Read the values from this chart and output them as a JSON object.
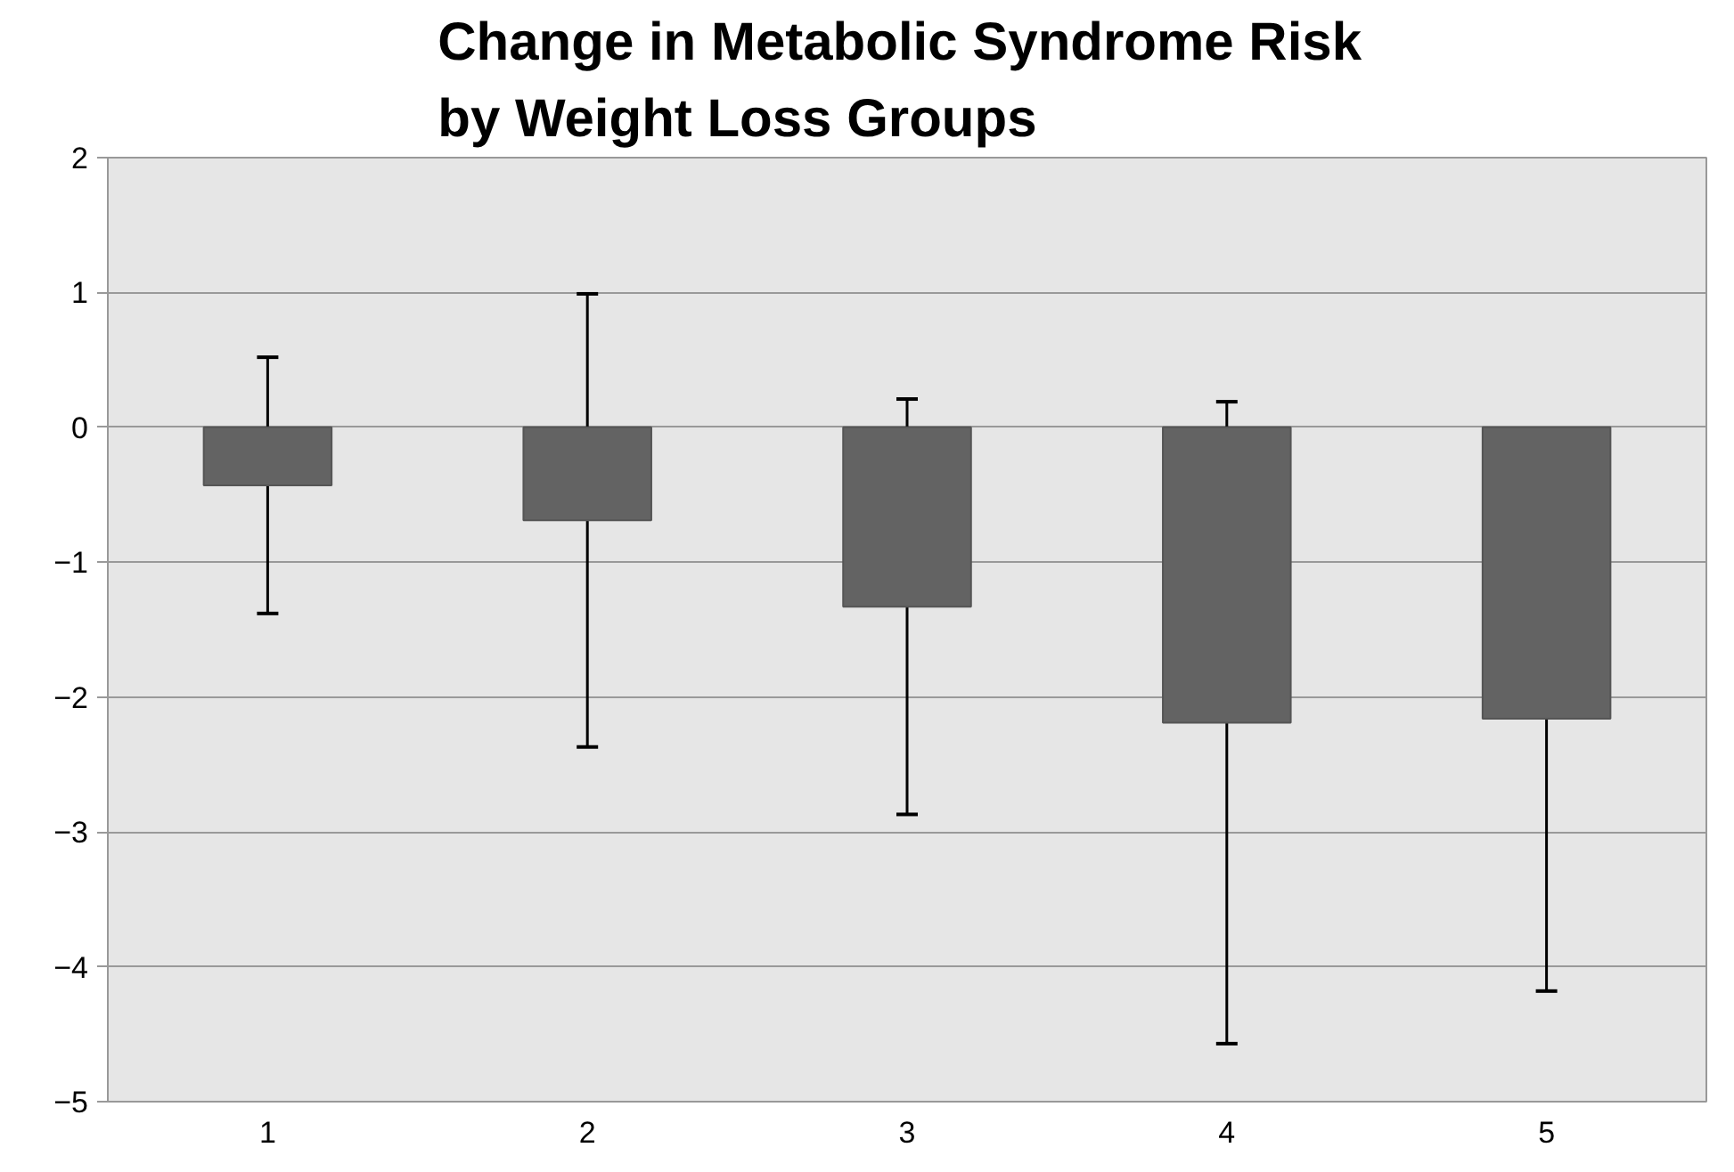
{
  "chart_data": {
    "type": "bar",
    "title": "Change in Metabolic  Syndrome Risk\nby Weight Loss Groups",
    "categories": [
      "1",
      "2",
      "3",
      "4",
      "5"
    ],
    "values": [
      -0.43,
      -0.69,
      -1.33,
      -2.19,
      -2.16
    ],
    "errors": [
      0.95,
      1.68,
      1.54,
      2.38,
      2.02
    ],
    "color": "#636363",
    "ylim": [
      -5,
      2
    ],
    "yticks": [
      -5,
      -4,
      -3,
      -2,
      -1,
      0,
      1,
      2
    ],
    "grid": "y"
  }
}
